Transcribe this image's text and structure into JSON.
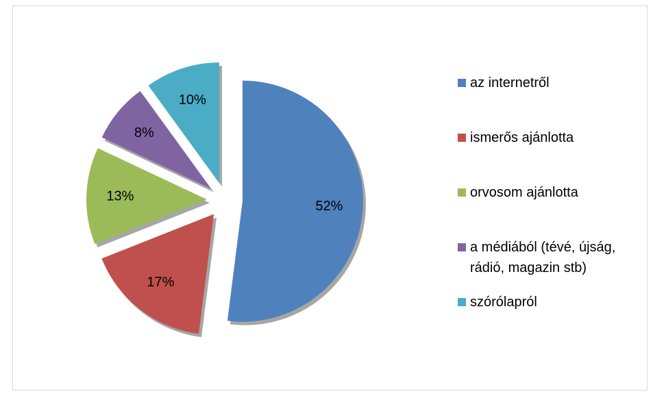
{
  "chart_data": {
    "type": "pie",
    "categories": [
      "az internetről",
      "ismerős ajánlotta",
      "orvosom ajánlotta",
      "a médiából (tévé, újság, rádió, magazin stb)",
      "szórólapról"
    ],
    "values": [
      52,
      17,
      13,
      8,
      10
    ],
    "value_labels": [
      "52%",
      "17%",
      "13%",
      "8%",
      "10%"
    ],
    "colors": [
      "#4f81bd",
      "#c0504d",
      "#9bbb59",
      "#8064a2",
      "#4bacc6"
    ],
    "legend": "right"
  }
}
